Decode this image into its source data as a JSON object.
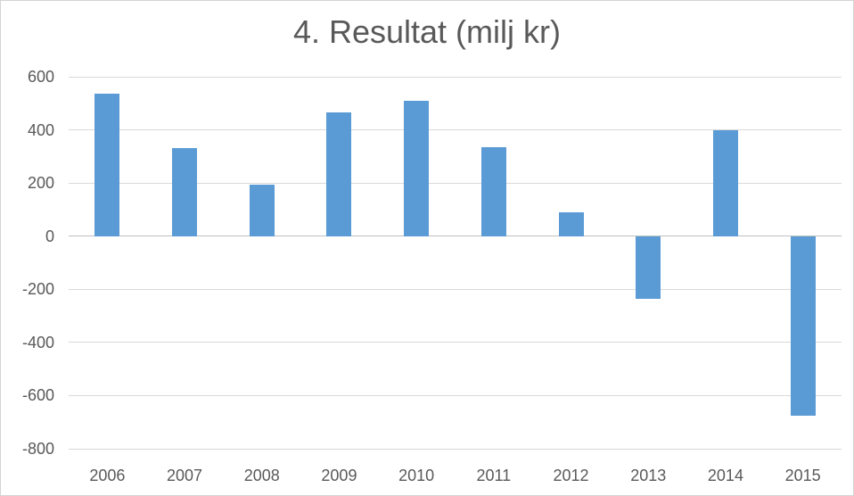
{
  "chart_title": "4. Resultat (milj kr)",
  "colors": {
    "bar": "#5b9bd5",
    "gridline": "#d9d9d9",
    "zero_line": "#bfbfbf",
    "text": "#595959",
    "frame_border": "#d4d4d4",
    "background": "#ffffff"
  },
  "chart_data": {
    "type": "bar",
    "title": "4. Resultat (milj kr)",
    "categories": [
      "2006",
      "2007",
      "2008",
      "2009",
      "2010",
      "2011",
      "2012",
      "2013",
      "2014",
      "2015"
    ],
    "values": [
      535,
      330,
      195,
      465,
      510,
      335,
      90,
      -235,
      400,
      -675
    ],
    "series_name": "Resultat",
    "xlabel": "",
    "ylabel": "",
    "ylim": [
      -800,
      600
    ],
    "yticks": [
      600,
      400,
      200,
      0,
      -200,
      -400,
      -600,
      -800
    ],
    "ytick_labels": [
      "600",
      "400",
      "200",
      "0",
      "-200",
      "-400",
      "-600",
      "-800"
    ],
    "grid": true,
    "legend": false
  }
}
